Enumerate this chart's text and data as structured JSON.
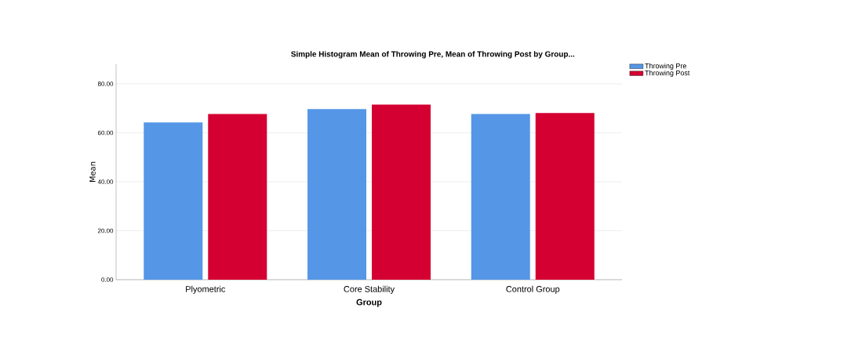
{
  "chart_data": {
    "type": "bar",
    "title": "Simple Histogram Mean of Throwing Pre, Mean of Throwing Post by Group...",
    "xlabel": "Group",
    "ylabel": "Mean",
    "categories": [
      "Plyometric",
      "Core Stability",
      "Control Group"
    ],
    "series": [
      {
        "name": "Throwing Pre",
        "color": "#5596e6",
        "values": [
          64.2,
          69.7,
          67.7
        ]
      },
      {
        "name": "Throwing Post",
        "color": "#d50032",
        "values": [
          67.7,
          71.5,
          68.1
        ]
      }
    ],
    "ylim": [
      0,
      88
    ],
    "yticks": [
      {
        "value": 0,
        "label": "0.00"
      },
      {
        "value": 20,
        "label": "20.00"
      },
      {
        "value": 40,
        "label": "40.00"
      },
      {
        "value": 60,
        "label": "60.00"
      },
      {
        "value": 80,
        "label": "80.00"
      }
    ],
    "grid": "y",
    "legend": "top right"
  }
}
